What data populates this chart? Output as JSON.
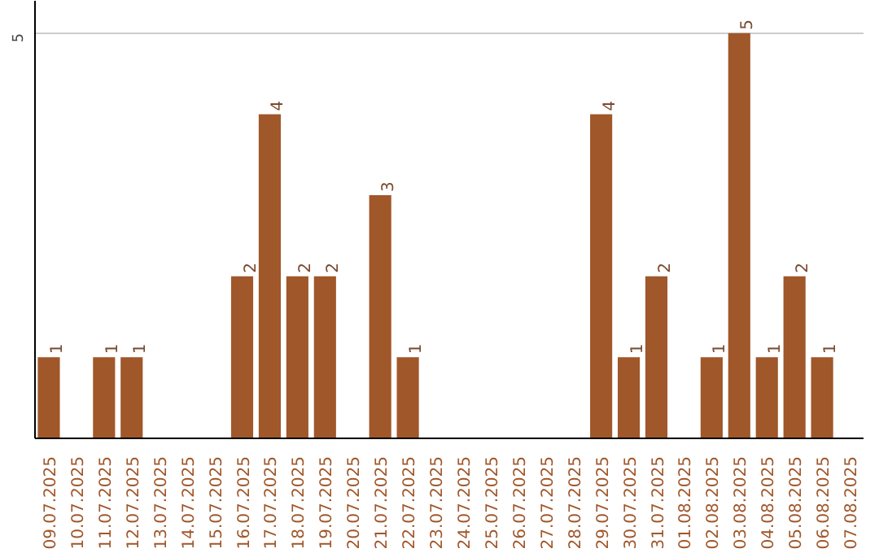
{
  "chart_data": {
    "type": "bar",
    "categories": [
      "09.07.2025",
      "10.07.2025",
      "11.07.2025",
      "12.07.2025",
      "13.07.2025",
      "14.07.2025",
      "15.07.2025",
      "16.07.2025",
      "17.07.2025",
      "18.07.2025",
      "19.07.2025",
      "20.07.2025",
      "21.07.2025",
      "22.07.2025",
      "23.07.2025",
      "24.07.2025",
      "25.07.2025",
      "26.07.2025",
      "27.07.2025",
      "28.07.2025",
      "29.07.2025",
      "30.07.2025",
      "31.07.2025",
      "01.08.2025",
      "02.08.2025",
      "03.08.2025",
      "04.08.2025",
      "05.08.2025",
      "06.08.2025",
      "07.08.2025"
    ],
    "values": [
      1,
      0,
      1,
      1,
      0,
      0,
      0,
      2,
      4,
      2,
      2,
      0,
      3,
      1,
      0,
      0,
      0,
      0,
      0,
      0,
      4,
      1,
      2,
      0,
      1,
      5,
      1,
      2,
      1,
      0
    ],
    "value_labels": [
      "1",
      null,
      "1",
      "1",
      null,
      null,
      null,
      "2",
      "4",
      "2",
      "2",
      null,
      "3",
      "1",
      null,
      null,
      null,
      null,
      null,
      null,
      "4",
      "1",
      "2",
      null,
      "1",
      "5",
      "1",
      "2",
      "1",
      null
    ],
    "color": "#a0572a",
    "ylim": [
      0,
      5.4
    ],
    "yticks": [
      5
    ],
    "grid": "y"
  }
}
